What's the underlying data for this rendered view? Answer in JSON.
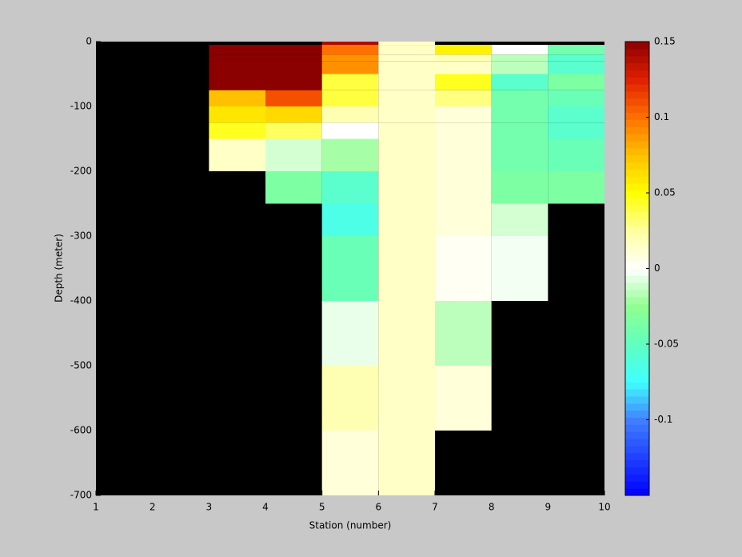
{
  "chart_data": {
    "type": "heatmap",
    "xlabel": "Station (number)",
    "ylabel": "Depth (meter)",
    "x_edges": [
      1,
      2,
      3,
      4,
      5,
      6,
      7,
      8,
      9,
      10
    ],
    "y_edges": [
      0,
      -5,
      -20,
      -30,
      -50,
      -75,
      -100,
      -125,
      -150,
      -200,
      -250,
      -300,
      -350,
      -400,
      -450,
      -500,
      -550,
      -600,
      -650,
      -700
    ],
    "z": [
      [
        null,
        null,
        null,
        null,
        0.14,
        0.015,
        null,
        null,
        null
      ],
      [
        null,
        null,
        0.15,
        0.15,
        0.1,
        0.015,
        0.055,
        0.0,
        -0.04
      ],
      [
        null,
        null,
        0.15,
        0.15,
        0.09,
        0.015,
        0.02,
        -0.015,
        -0.055
      ],
      [
        null,
        null,
        0.15,
        0.15,
        0.09,
        0.015,
        0.015,
        -0.015,
        -0.055
      ],
      [
        null,
        null,
        0.15,
        0.15,
        0.04,
        0.015,
        0.045,
        -0.055,
        -0.035
      ],
      [
        null,
        null,
        0.075,
        0.11,
        0.04,
        0.015,
        0.03,
        -0.04,
        -0.045
      ],
      [
        null,
        null,
        0.06,
        0.065,
        0.02,
        0.015,
        0.01,
        -0.04,
        -0.055
      ],
      [
        null,
        null,
        0.045,
        0.035,
        0.0,
        0.015,
        0.01,
        -0.04,
        -0.055
      ],
      [
        null,
        null,
        0.015,
        -0.01,
        -0.02,
        0.015,
        0.01,
        -0.04,
        -0.045
      ],
      [
        null,
        null,
        null,
        -0.035,
        -0.055,
        0.015,
        0.01,
        -0.035,
        -0.035
      ],
      [
        null,
        null,
        null,
        null,
        -0.065,
        0.015,
        0.01,
        -0.01,
        null
      ],
      [
        null,
        null,
        null,
        null,
        -0.045,
        0.015,
        0.003,
        -0.003,
        null
      ],
      [
        null,
        null,
        null,
        null,
        -0.045,
        0.015,
        0.003,
        -0.003,
        null
      ],
      [
        null,
        null,
        null,
        null,
        -0.005,
        0.015,
        -0.015,
        null,
        null
      ],
      [
        null,
        null,
        null,
        null,
        -0.005,
        0.015,
        -0.015,
        null,
        null
      ],
      [
        null,
        null,
        null,
        null,
        0.02,
        0.015,
        0.01,
        null,
        null
      ],
      [
        null,
        null,
        null,
        null,
        0.02,
        0.015,
        0.01,
        null,
        null
      ],
      [
        null,
        null,
        null,
        null,
        0.01,
        0.015,
        null,
        null,
        null
      ],
      [
        null,
        null,
        null,
        null,
        0.01,
        0.015,
        null,
        null,
        null
      ]
    ],
    "xlim": [
      1,
      10
    ],
    "xticks": [
      1,
      2,
      3,
      4,
      5,
      6,
      7,
      8,
      9,
      10
    ],
    "ylim": [
      -700,
      0
    ],
    "yticks": [
      0,
      -100,
      -200,
      -300,
      -400,
      -500,
      -600,
      -700
    ],
    "clim": [
      -0.15,
      0.15
    ],
    "cticks": [
      0.15,
      0.1,
      0.05,
      0,
      -0.05,
      -0.1
    ],
    "colormap": [
      "#0000ff",
      "#2040ff",
      "#4080ff",
      "#40ffff",
      "#60ffc0",
      "#90ff90",
      "#ffffff",
      "#ffffa0",
      "#ffff00",
      "#ffc000",
      "#ff7000",
      "#e02000",
      "#8b0000"
    ],
    "background": "#000000"
  }
}
